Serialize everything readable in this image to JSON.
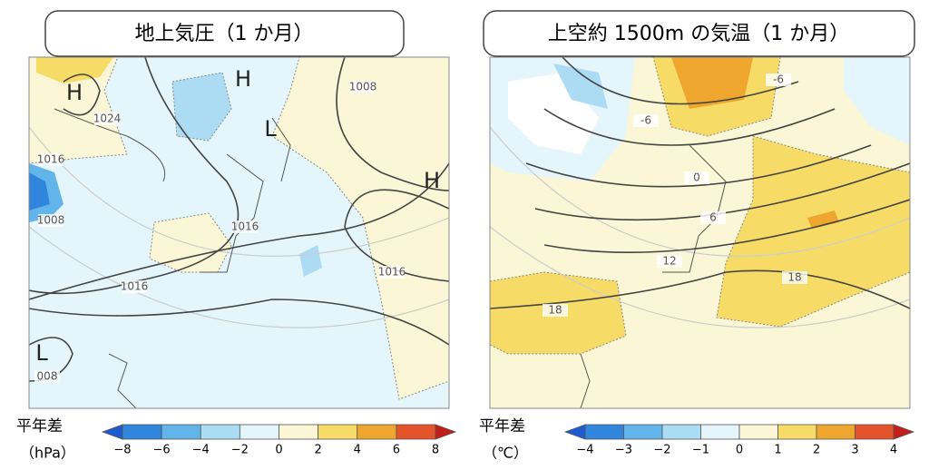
{
  "panels": [
    {
      "title": "地上気圧（1 か月）",
      "legend_title": "平年差",
      "legend_unit": "（hPa）",
      "colorbar_ticks": [
        "−8",
        "−6",
        "−4",
        "−2",
        "0",
        "2",
        "4",
        "6",
        "8"
      ],
      "colorbar_colors": [
        "#1f5bd0",
        "#2f86dc",
        "#62b5ea",
        "#abdcf3",
        "#e4f6fb",
        "#fbf6d6",
        "#f6dc66",
        "#efa62e",
        "#e5532a",
        "#c31f1a"
      ],
      "map_labels": [
        "H",
        "H",
        "L",
        "H",
        "L",
        "1024",
        "1016",
        "1008",
        "1016",
        "1016",
        "1016",
        "1008",
        "008"
      ]
    },
    {
      "title": "上空約 1500m の気温（1 か月）",
      "legend_title": "平年差",
      "legend_unit": "（℃）",
      "colorbar_ticks": [
        "−4",
        "−3",
        "−2",
        "−1",
        "0",
        "1",
        "2",
        "3",
        "4"
      ],
      "colorbar_colors": [
        "#1f5bd0",
        "#2f86dc",
        "#62b5ea",
        "#abdcf3",
        "#e4f6fb",
        "#fbf6d6",
        "#f6dc66",
        "#efa62e",
        "#e5532a",
        "#c31f1a"
      ],
      "map_labels": [
        "-6",
        "-6",
        "0",
        "6",
        "12",
        "18",
        "18"
      ]
    }
  ]
}
